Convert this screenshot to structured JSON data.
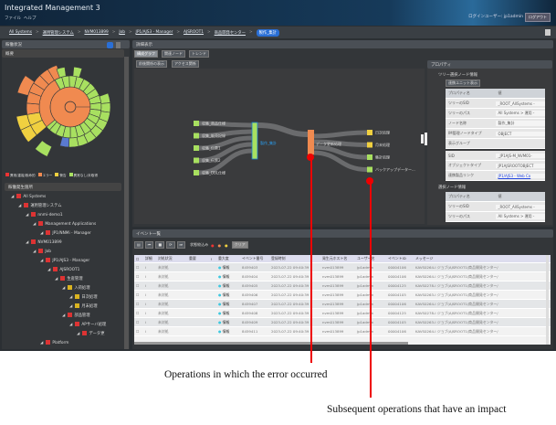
{
  "app": {
    "title": "Integrated Management 3",
    "menu": [
      "ファイル",
      "ヘルプ"
    ],
    "login_user": "ログインユーザー: jp1admin",
    "logout": "ログアウト"
  },
  "breadcrumb": [
    "All Systems",
    "運用管理システム",
    "NVM013899",
    "Job",
    "JP1/AJS3 - Manager",
    "AJSROOT1",
    "商品開発センター",
    "製作_集計"
  ],
  "left": {
    "title": "稼働状況",
    "overview": "概要",
    "legend": [
      "異常/重複/致命的",
      "エラー",
      "警告",
      "異常なし/未取得"
    ],
    "tree_title": "稼働発生箇所",
    "tree": [
      {
        "label": "All Systems",
        "lvl": 0,
        "s": "e"
      },
      {
        "label": "運用管理システム",
        "lvl": 1,
        "s": "e"
      },
      {
        "label": "nnmi-demo1",
        "lvl": 2,
        "s": "e"
      },
      {
        "label": "Management Applications",
        "lvl": 3,
        "s": "e"
      },
      {
        "label": "JP1/NNMi - Manager",
        "lvl": 4,
        "s": "e"
      },
      {
        "label": "NVM013899",
        "lvl": 2,
        "s": "e"
      },
      {
        "label": "Job",
        "lvl": 3,
        "s": "e"
      },
      {
        "label": "JP1/AJS3 - Manager",
        "lvl": 4,
        "s": "e"
      },
      {
        "label": "AJSROOT1",
        "lvl": 5,
        "s": "e"
      },
      {
        "label": "生産管理",
        "lvl": 6,
        "s": "e"
      },
      {
        "label": "入荷処理",
        "lvl": 7,
        "s": "w"
      },
      {
        "label": "日次処理",
        "lvl": 8,
        "s": "w"
      },
      {
        "label": "月末処理",
        "lvl": 8,
        "s": "w"
      },
      {
        "label": "部品管理",
        "lvl": 7,
        "s": "e"
      },
      {
        "label": "APサーバ処理",
        "lvl": 8,
        "s": "e"
      },
      {
        "label": "データ更",
        "lvl": 9,
        "s": "e"
      },
      {
        "label": "Platform",
        "lvl": 4,
        "s": "e"
      }
    ]
  },
  "main": {
    "title": "詳細表示",
    "tabs": [
      "構成グラフ",
      "関連ノード",
      "トレンド"
    ],
    "subtabs": [
      "前後関係の表示",
      "アクセス関係"
    ],
    "graph": {
      "left_nodes": [
        "収集_商品仕様",
        "収集_販売記録",
        "収集_伝票1",
        "収集_伝票2",
        "収集_DBL仕様"
      ],
      "center": "製作_集計",
      "error_node": "データ更新処理",
      "right_nodes": [
        "日次処理",
        "月末処理",
        "集計処理",
        "バックアップデーター..."
      ]
    },
    "colors": {
      "ok": "#a8e060",
      "error": "#f08a50",
      "warning": "#f0d040",
      "selected": "#1a7fd0"
    }
  },
  "props": {
    "title": "プロパティ",
    "sec1": "ツリー選択ノード情報",
    "unit_btn": "連携ユニット表示",
    "col_name": "プロパティ名",
    "col_val": "値",
    "rows1": [
      [
        "ツリーのSID",
        "_ROOT_AllSystems -"
      ],
      [
        "ツリーのパス",
        "All Systems > 運用 -"
      ],
      [
        "ノード名称",
        "製作_集計"
      ],
      [
        "IM管理ノードタイプ",
        "OBJECT"
      ],
      [
        "表示グループ",
        ""
      ]
    ],
    "rows2": [
      [
        "SID",
        "_JP1AJS-M_NVM01-"
      ],
      [
        "オブジェクトタイプ",
        "JP1AJSROOTOBJECT"
      ],
      [
        "連携製品リンク",
        "JP1/AJS3 - Web Co"
      ]
    ],
    "sec2": "選択ノード情報",
    "rows3": [
      [
        "ツリーのSID",
        "_ROOT_AllSystems -"
      ],
      [
        "ツリーのパス",
        "All Systems > 運用 -"
      ]
    ]
  },
  "events": {
    "title": "イベント一覧",
    "filter_label": "状態絞込み",
    "clear": "クリア",
    "columns": [
      "詳細",
      "対処状況",
      "重要",
      "!",
      "重大度",
      "イベント番号",
      "登録時刻",
      "発生元ホスト名",
      "ユーザー名",
      "イベントID",
      "メッセージ"
    ],
    "rows": [
      [
        "未対処",
        "情報",
        "8459403",
        "2023-07-22 09:40:39",
        "nvm013899",
        "jp1admin",
        "00004106",
        "KAVS0264-I ジョブ(AJSROOT1/商品開発センター/"
      ],
      [
        "未対処",
        "情報",
        "8459404",
        "2023-07-22 09:40:39",
        "nvm013899",
        "jp1admin",
        "00004106",
        "KAVS0264-I ジョブ(AJSROOT1/商品開発センター/"
      ],
      [
        "未対処",
        "情報",
        "8459405",
        "2023-07-22 09:40:39",
        "nvm013899",
        "jp1admin",
        "00004125",
        "KAVS0278-I ジョブ(AJSROOT1/商品開発センター/"
      ],
      [
        "未対処",
        "情報",
        "8459406",
        "2023-07-22 09:40:39",
        "nvm013899",
        "jp1admin",
        "00004105",
        "KAVS0263-I ジョブ(AJSROOT1/商品開発センター/"
      ],
      [
        "未対処",
        "情報",
        "8459407",
        "2023-07-22 09:40:39",
        "nvm013899",
        "jp1admin",
        "00004106",
        "KAVS0264-I ジョブ(AJSROOT1/商品開発センター/"
      ],
      [
        "未対処",
        "情報",
        "8459408",
        "2023-07-22 09:40:39",
        "nvm013899",
        "jp1admin",
        "00004125",
        "KAVS0278-I ジョブ(AJSROOT1/商品開発センター/"
      ],
      [
        "未対処",
        "情報",
        "8459409",
        "2023-07-22 09:40:39",
        "nvm013899",
        "jp1admin",
        "00004105",
        "KAVS0263-I ジョブ(AJSROOT1/商品開発センター/"
      ],
      [
        "未対処",
        "情報",
        "8459411",
        "2023-07-22 09:40:39",
        "nvm013899",
        "jp1admin",
        "00004106",
        "KAVS0264-I ジョブ(AJSROOT1/商品開発センター/"
      ]
    ]
  },
  "annotations": {
    "error": "Operations in which the error occurred",
    "impact": "Subsequent operations that have an impact"
  }
}
